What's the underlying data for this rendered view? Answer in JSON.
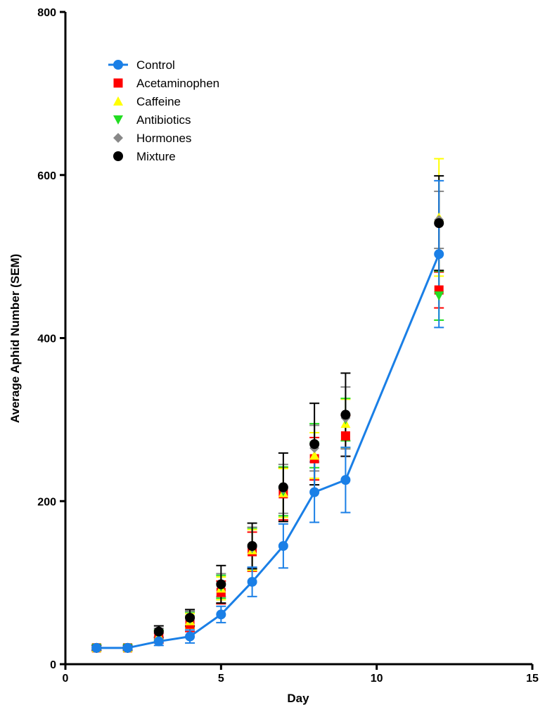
{
  "chart_data": {
    "type": "scatter",
    "title": "",
    "xlabel": "Day",
    "ylabel": "Average Aphid Number (SEM)",
    "xlim": [
      0,
      15
    ],
    "ylim": [
      0,
      800
    ],
    "x_ticks": [
      0,
      5,
      10,
      15
    ],
    "y_ticks": [
      0,
      200,
      400,
      600,
      800
    ],
    "x_tick_labels": [
      "0",
      "5",
      "10",
      "15"
    ],
    "y_tick_labels": [
      "0",
      "200",
      "400",
      "600",
      "800"
    ],
    "grid": false,
    "legend_position": "top-left",
    "x": [
      1,
      2,
      3,
      4,
      5,
      6,
      7,
      8,
      9,
      12
    ],
    "series": [
      {
        "name": "Control",
        "color": "#1a7fe6",
        "marker": "circle",
        "line": true,
        "values": [
          20,
          20,
          28,
          34,
          61,
          101,
          145,
          211,
          226,
          503
        ],
        "errors": [
          3,
          3,
          5,
          8,
          10,
          18,
          27,
          37,
          40,
          90
        ]
      },
      {
        "name": "Acetaminophen",
        "color": "#ff0000",
        "marker": "square",
        "line": false,
        "values": [
          20,
          20,
          32,
          49,
          88,
          138,
          209,
          252,
          280,
          459
        ],
        "errors": [
          3,
          3,
          6,
          9,
          14,
          24,
          32,
          26,
          25,
          22
        ]
      },
      {
        "name": "Caffeine",
        "color": "#ffff00",
        "marker": "triangle-up",
        "line": false,
        "values": [
          20,
          20,
          35,
          53,
          93,
          140,
          210,
          256,
          295,
          548
        ],
        "errors": [
          3,
          3,
          6,
          9,
          14,
          25,
          30,
          28,
          30,
          72
        ]
      },
      {
        "name": "Antibiotics",
        "color": "#22dd22",
        "marker": "triangle-down",
        "line": false,
        "values": [
          20,
          20,
          36,
          55,
          95,
          142,
          212,
          268,
          300,
          452
        ],
        "errors": [
          3,
          3,
          6,
          9,
          14,
          25,
          30,
          27,
          26,
          30
        ]
      },
      {
        "name": "Hormones",
        "color": "#888888",
        "marker": "diamond",
        "line": false,
        "values": [
          20,
          20,
          38,
          56,
          97,
          143,
          215,
          265,
          302,
          545
        ],
        "errors": [
          3,
          3,
          6,
          9,
          14,
          25,
          30,
          28,
          38,
          35
        ]
      },
      {
        "name": "Mixture",
        "color": "#000000",
        "marker": "circle",
        "line": false,
        "values": [
          20,
          20,
          40,
          57,
          98,
          145,
          217,
          270,
          306,
          541
        ],
        "errors": [
          3,
          3,
          7,
          10,
          23,
          28,
          42,
          50,
          51,
          58
        ]
      }
    ]
  }
}
